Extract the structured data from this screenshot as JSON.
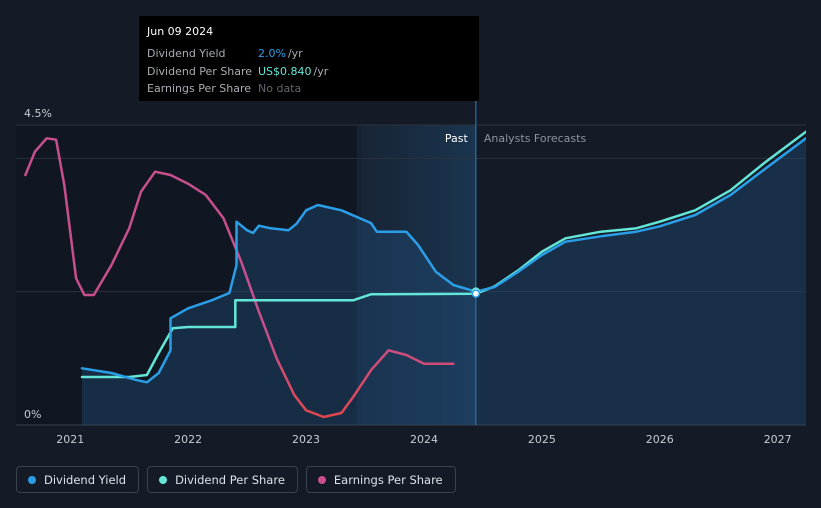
{
  "tooltip": {
    "date": "Jun 09 2024",
    "rows": [
      {
        "label": "Dividend Yield",
        "value": "2.0%",
        "unit": "/yr"
      },
      {
        "label": "Dividend Per Share",
        "value": "US$0.840",
        "unit": "/yr"
      },
      {
        "label": "Earnings Per Share",
        "value": "No data",
        "unit": ""
      }
    ]
  },
  "legend": [
    {
      "label": "Dividend Yield",
      "color": "#2b9ee8"
    },
    {
      "label": "Dividend Per Share",
      "color": "#63e6d7"
    },
    {
      "label": "Earnings Per Share",
      "color": "#c84f8d"
    }
  ],
  "chart_data": {
    "type": "line",
    "y_axis": {
      "ticks": [
        "0%",
        "4.5%"
      ],
      "ylim": [
        0,
        4.5
      ],
      "unit": "%"
    },
    "x_axis": {
      "ticks": [
        "2021",
        "2022",
        "2023",
        "2024",
        "2025",
        "2026",
        "2027"
      ],
      "xlim": [
        2020.54,
        2027.24
      ]
    },
    "regions": {
      "past_label": "Past",
      "forecast_label": "Analysts Forecasts",
      "divider_x": 2024.44,
      "past_shade_start": 2023.43
    },
    "colors": {
      "yield": "#2b9ee8",
      "dps": "#63e6d7",
      "eps": "#c84f8d",
      "eps_low": "#e0474c"
    },
    "series": [
      {
        "name": "Dividend Yield",
        "values": [
          [
            2021.1,
            0.85
          ],
          [
            2021.35,
            0.78
          ],
          [
            2021.55,
            0.68
          ],
          [
            2021.65,
            0.64
          ],
          [
            2021.75,
            0.78
          ],
          [
            2021.85,
            1.12
          ],
          [
            2021.85,
            1.6
          ],
          [
            2022.0,
            1.75
          ],
          [
            2022.2,
            1.87
          ],
          [
            2022.35,
            1.98
          ],
          [
            2022.41,
            2.4
          ],
          [
            2022.41,
            3.05
          ],
          [
            2022.5,
            2.92
          ],
          [
            2022.55,
            2.88
          ],
          [
            2022.6,
            2.99
          ],
          [
            2022.7,
            2.95
          ],
          [
            2022.85,
            2.92
          ],
          [
            2022.92,
            3.02
          ],
          [
            2023.0,
            3.22
          ],
          [
            2023.1,
            3.3
          ],
          [
            2023.3,
            3.22
          ],
          [
            2023.55,
            3.03
          ],
          [
            2023.6,
            2.9
          ],
          [
            2023.85,
            2.9
          ],
          [
            2023.95,
            2.7
          ],
          [
            2024.1,
            2.3
          ],
          [
            2024.25,
            2.1
          ],
          [
            2024.44,
            2.0
          ],
          [
            2024.6,
            2.07
          ],
          [
            2024.8,
            2.3
          ],
          [
            2025.0,
            2.55
          ],
          [
            2025.2,
            2.75
          ],
          [
            2025.5,
            2.83
          ],
          [
            2025.8,
            2.9
          ],
          [
            2026.0,
            2.98
          ],
          [
            2026.3,
            3.15
          ],
          [
            2026.6,
            3.45
          ],
          [
            2026.9,
            3.85
          ],
          [
            2027.24,
            4.3
          ]
        ]
      },
      {
        "name": "Dividend Per Share",
        "values": [
          [
            2021.1,
            0.72
          ],
          [
            2021.5,
            0.72
          ],
          [
            2021.65,
            0.75
          ],
          [
            2021.75,
            1.08
          ],
          [
            2021.87,
            1.45
          ],
          [
            2022.0,
            1.47
          ],
          [
            2022.4,
            1.47
          ],
          [
            2022.4,
            1.87
          ],
          [
            2023.4,
            1.87
          ],
          [
            2023.55,
            1.96
          ],
          [
            2024.44,
            1.97
          ],
          [
            2024.6,
            2.08
          ],
          [
            2024.8,
            2.32
          ],
          [
            2025.0,
            2.6
          ],
          [
            2025.2,
            2.8
          ],
          [
            2025.5,
            2.9
          ],
          [
            2025.8,
            2.95
          ],
          [
            2026.0,
            3.05
          ],
          [
            2026.3,
            3.22
          ],
          [
            2026.6,
            3.52
          ],
          [
            2026.9,
            3.95
          ],
          [
            2027.24,
            4.4
          ]
        ]
      },
      {
        "name": "Earnings Per Share",
        "values": [
          [
            2020.62,
            3.75
          ],
          [
            2020.7,
            4.1
          ],
          [
            2020.8,
            4.3
          ],
          [
            2020.88,
            4.28
          ],
          [
            2020.95,
            3.6
          ],
          [
            2021.05,
            2.2
          ],
          [
            2021.12,
            1.95
          ],
          [
            2021.2,
            1.95
          ],
          [
            2021.35,
            2.4
          ],
          [
            2021.5,
            2.95
          ],
          [
            2021.6,
            3.5
          ],
          [
            2021.72,
            3.8
          ],
          [
            2021.85,
            3.75
          ],
          [
            2022.0,
            3.62
          ],
          [
            2022.15,
            3.45
          ],
          [
            2022.3,
            3.1
          ],
          [
            2022.45,
            2.45
          ],
          [
            2022.6,
            1.7
          ],
          [
            2022.75,
            1.0
          ],
          [
            2022.9,
            0.45
          ],
          [
            2023.0,
            0.22
          ],
          [
            2023.15,
            0.12
          ],
          [
            2023.3,
            0.18
          ],
          [
            2023.4,
            0.42
          ],
          [
            2023.55,
            0.82
          ],
          [
            2023.7,
            1.12
          ],
          [
            2023.85,
            1.05
          ],
          [
            2024.0,
            0.92
          ],
          [
            2024.15,
            0.92
          ],
          [
            2024.25,
            0.92
          ]
        ]
      }
    ]
  }
}
